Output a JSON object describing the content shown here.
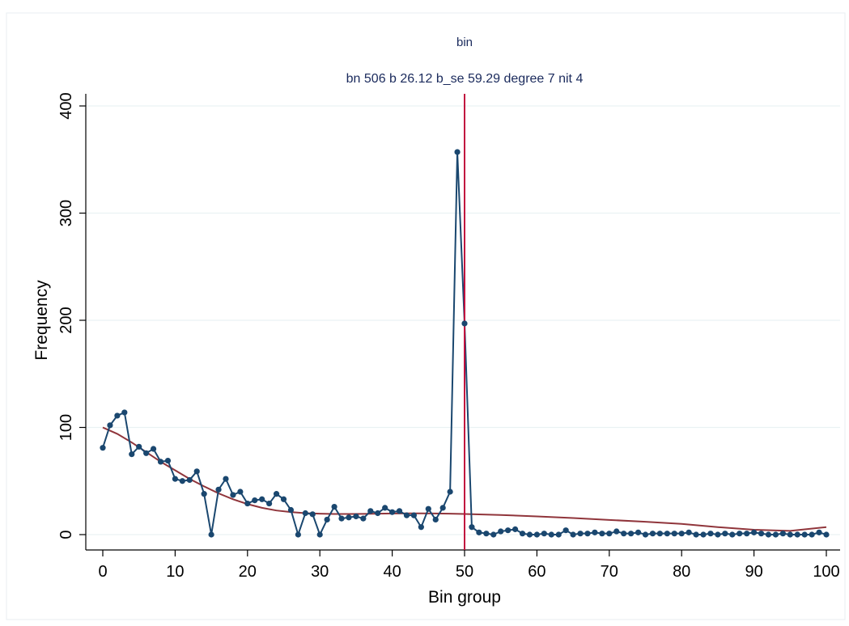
{
  "chart_data": {
    "type": "line",
    "title": "bin",
    "subtitle": "bn 506 b 26.12 b_se 59.29 degree 7 nit 4",
    "xlabel": "Bin group",
    "ylabel": "Frequency",
    "xlim": [
      0,
      100
    ],
    "ylim": [
      0,
      400
    ],
    "xticks": [
      0,
      10,
      20,
      30,
      40,
      50,
      60,
      70,
      80,
      90,
      100
    ],
    "yticks": [
      0,
      100,
      200,
      300,
      400
    ],
    "grid": true,
    "legend": "none",
    "cutoff_line": {
      "x": 50,
      "color": "#c1103f"
    },
    "series": [
      {
        "style": "line-markers",
        "color": "#1a476f",
        "x": [
          0,
          1,
          2,
          3,
          4,
          5,
          6,
          7,
          8,
          9,
          10,
          11,
          12,
          13,
          14,
          15,
          16,
          17,
          18,
          19,
          20,
          21,
          22,
          23,
          24,
          25,
          26,
          27,
          28,
          29,
          30,
          31,
          32,
          33,
          34,
          35,
          36,
          37,
          38,
          39,
          40,
          41,
          42,
          43,
          44,
          45,
          46,
          47,
          48,
          49,
          50,
          51,
          52,
          53,
          54,
          55,
          56,
          57,
          58,
          59,
          60,
          61,
          62,
          63,
          64,
          65,
          66,
          67,
          68,
          69,
          70,
          71,
          72,
          73,
          74,
          75,
          76,
          77,
          78,
          79,
          80,
          81,
          82,
          83,
          84,
          85,
          86,
          87,
          88,
          89,
          90,
          91,
          92,
          93,
          94,
          95,
          96,
          97,
          98,
          99,
          100
        ],
        "y": [
          81,
          102,
          111,
          114,
          75,
          82,
          76,
          80,
          68,
          69,
          52,
          50,
          51,
          59,
          38,
          0,
          42,
          52,
          37,
          40,
          29,
          32,
          33,
          29,
          38,
          33,
          23,
          0,
          20,
          19,
          0,
          14,
          26,
          15,
          16,
          17,
          15,
          22,
          20,
          25,
          21,
          22,
          18,
          18,
          7,
          24,
          14,
          25,
          40,
          357,
          197,
          7,
          2,
          1,
          0,
          3,
          4,
          5,
          1,
          0,
          0,
          1,
          0,
          0,
          4,
          0,
          1,
          1,
          2,
          1,
          1,
          3,
          1,
          1,
          2,
          0,
          1,
          1,
          1,
          1,
          1,
          2,
          0,
          0,
          1,
          0,
          1,
          0,
          1,
          1,
          2,
          1,
          0,
          0,
          1,
          0,
          0,
          0,
          0,
          2,
          0
        ]
      },
      {
        "style": "smooth-line",
        "color": "#90353b",
        "x": [
          0,
          2,
          4,
          6,
          8,
          10,
          12,
          14,
          16,
          18,
          20,
          22,
          24,
          26,
          28,
          30,
          32,
          34,
          36,
          38,
          40,
          42,
          44,
          46,
          48,
          50,
          55,
          60,
          65,
          70,
          75,
          80,
          85,
          90,
          95,
          100
        ],
        "y": [
          100,
          94,
          86,
          77,
          68,
          60,
          52,
          45,
          38.5,
          33,
          28.5,
          25,
          22.5,
          21,
          20,
          19.5,
          19.2,
          19.2,
          19.3,
          19.5,
          19.7,
          19.8,
          19.8,
          19.7,
          19.5,
          19.2,
          18.3,
          17,
          15.5,
          13.7,
          12,
          10,
          7,
          4.5,
          3.5,
          7
        ]
      }
    ]
  }
}
